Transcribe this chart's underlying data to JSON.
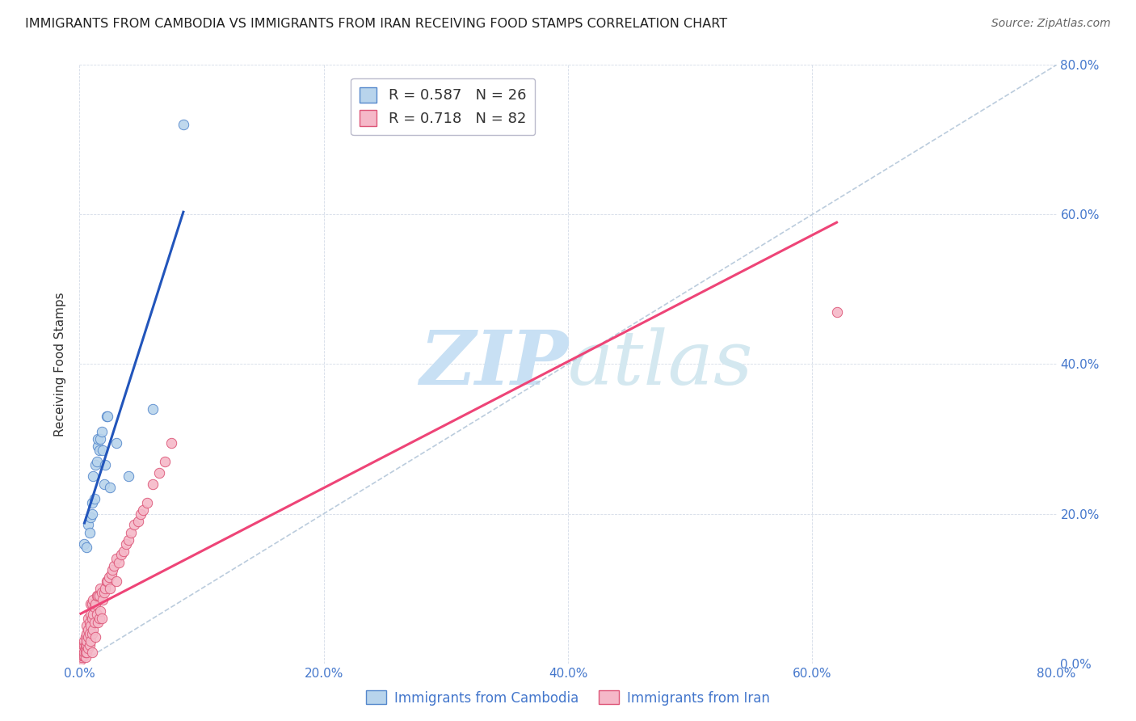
{
  "title": "IMMIGRANTS FROM CAMBODIA VS IMMIGRANTS FROM IRAN RECEIVING FOOD STAMPS CORRELATION CHART",
  "source": "Source: ZipAtlas.com",
  "ylabel": "Receiving Food Stamps",
  "x_tick_labels": [
    "0.0%",
    "20.0%",
    "40.0%",
    "60.0%",
    "80.0%"
  ],
  "y_tick_labels": [
    "0.0%",
    "20.0%",
    "40.0%",
    "60.0%",
    "80.0%"
  ],
  "x_ticks": [
    0,
    0.2,
    0.4,
    0.6,
    0.8
  ],
  "y_ticks": [
    0,
    0.2,
    0.4,
    0.6,
    0.8
  ],
  "xlim": [
    0,
    0.8
  ],
  "ylim": [
    0,
    0.8
  ],
  "watermark_zip": "ZIP",
  "watermark_atlas": "atlas",
  "watermark_color": "#cce4f5",
  "cambodia_color": "#b8d4ec",
  "cambodia_edge_color": "#5588cc",
  "iran_color": "#f5b8c8",
  "iran_edge_color": "#dd5577",
  "cambodia_line_color": "#2255bb",
  "iran_line_color": "#ee4477",
  "diagonal_color": "#bbccdd",
  "cambodia_x": [
    0.004,
    0.006,
    0.007,
    0.008,
    0.009,
    0.01,
    0.01,
    0.011,
    0.012,
    0.013,
    0.014,
    0.015,
    0.015,
    0.016,
    0.017,
    0.018,
    0.019,
    0.02,
    0.021,
    0.022,
    0.023,
    0.025,
    0.03,
    0.04,
    0.06,
    0.085
  ],
  "cambodia_y": [
    0.16,
    0.155,
    0.185,
    0.175,
    0.195,
    0.2,
    0.215,
    0.25,
    0.22,
    0.265,
    0.27,
    0.29,
    0.3,
    0.285,
    0.3,
    0.31,
    0.285,
    0.24,
    0.265,
    0.33,
    0.33,
    0.235,
    0.295,
    0.25,
    0.34,
    0.72
  ],
  "iran_x": [
    0.001,
    0.002,
    0.002,
    0.002,
    0.003,
    0.003,
    0.003,
    0.003,
    0.004,
    0.004,
    0.004,
    0.004,
    0.005,
    0.005,
    0.005,
    0.005,
    0.005,
    0.006,
    0.006,
    0.006,
    0.006,
    0.006,
    0.007,
    0.007,
    0.007,
    0.007,
    0.008,
    0.008,
    0.008,
    0.009,
    0.009,
    0.009,
    0.009,
    0.01,
    0.01,
    0.01,
    0.01,
    0.011,
    0.011,
    0.011,
    0.012,
    0.012,
    0.013,
    0.013,
    0.014,
    0.014,
    0.015,
    0.015,
    0.016,
    0.016,
    0.017,
    0.017,
    0.018,
    0.018,
    0.019,
    0.02,
    0.021,
    0.022,
    0.023,
    0.024,
    0.025,
    0.026,
    0.027,
    0.028,
    0.03,
    0.03,
    0.032,
    0.034,
    0.036,
    0.038,
    0.04,
    0.042,
    0.045,
    0.048,
    0.05,
    0.052,
    0.055,
    0.06,
    0.065,
    0.07,
    0.075,
    0.62
  ],
  "iran_y": [
    0.005,
    0.008,
    0.01,
    0.015,
    0.01,
    0.015,
    0.02,
    0.025,
    0.01,
    0.015,
    0.025,
    0.03,
    0.008,
    0.015,
    0.02,
    0.025,
    0.035,
    0.015,
    0.025,
    0.03,
    0.04,
    0.05,
    0.02,
    0.035,
    0.045,
    0.06,
    0.025,
    0.04,
    0.055,
    0.03,
    0.05,
    0.065,
    0.08,
    0.015,
    0.04,
    0.06,
    0.08,
    0.045,
    0.065,
    0.085,
    0.055,
    0.075,
    0.035,
    0.08,
    0.065,
    0.09,
    0.055,
    0.09,
    0.06,
    0.09,
    0.07,
    0.1,
    0.06,
    0.095,
    0.085,
    0.095,
    0.1,
    0.11,
    0.11,
    0.115,
    0.1,
    0.12,
    0.125,
    0.13,
    0.11,
    0.14,
    0.135,
    0.145,
    0.15,
    0.16,
    0.165,
    0.175,
    0.185,
    0.19,
    0.2,
    0.205,
    0.215,
    0.24,
    0.255,
    0.27,
    0.295,
    0.47
  ],
  "title_fontsize": 11.5,
  "axis_label_fontsize": 11,
  "tick_fontsize": 11,
  "legend_fontsize": 13,
  "source_fontsize": 10,
  "marker_size": 80,
  "background_color": "#ffffff",
  "grid_color": "#d5dce8",
  "tick_color": "#4477cc",
  "legend_label_color": "#333333",
  "legend_r_color": "#2299bb",
  "legend_n_color": "#ee6600"
}
